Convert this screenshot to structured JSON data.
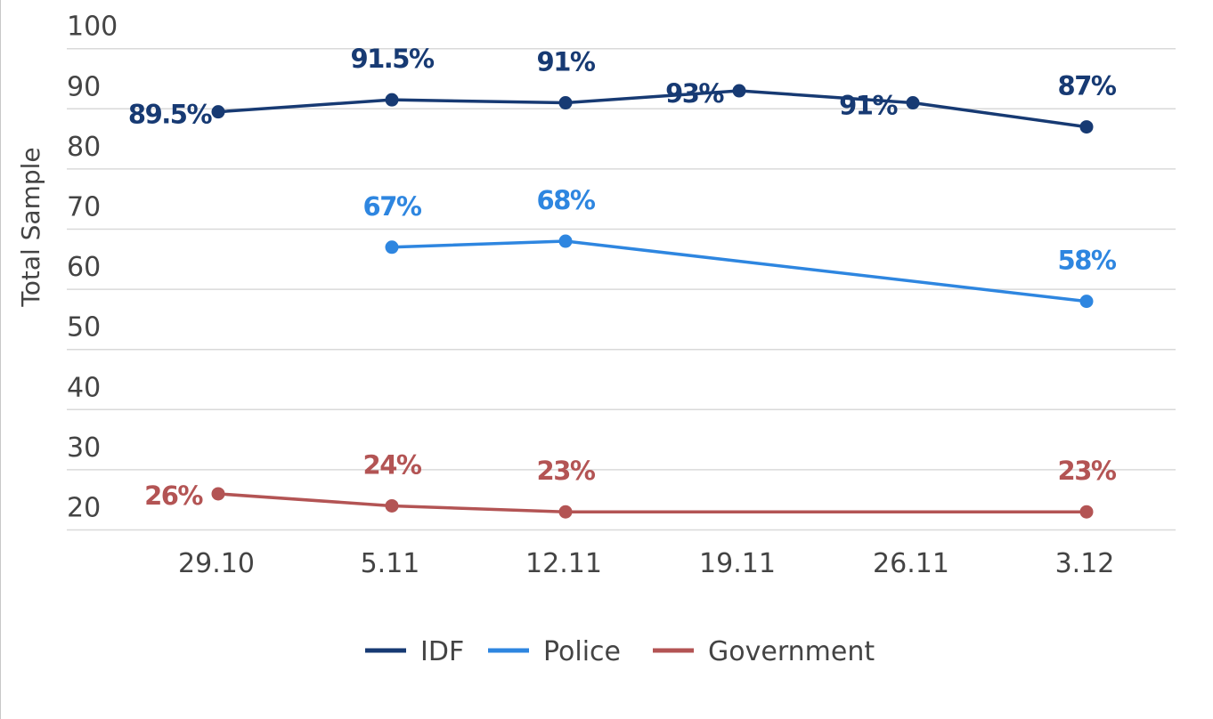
{
  "chart_data": {
    "type": "line",
    "categories": [
      "29.10",
      "5.11",
      "12.11",
      "19.11",
      "26.11",
      "3.12"
    ],
    "ylabel": "Total Sample",
    "xlabel": "",
    "ylim": [
      20,
      100
    ],
    "yticks": [
      20,
      30,
      40,
      50,
      60,
      70,
      80,
      90,
      100
    ],
    "grid": true,
    "legend_position": "bottom",
    "series": [
      {
        "name": "IDF",
        "color": "#173a73",
        "values": [
          89.5,
          91.5,
          91,
          93,
          91,
          87
        ],
        "labels": [
          "89.5%",
          "91.5%",
          "91%",
          "93%",
          "91%",
          "87%"
        ]
      },
      {
        "name": "Police",
        "color": "#2e86e0",
        "values": [
          null,
          67,
          68,
          null,
          null,
          58
        ],
        "labels": [
          null,
          "67%",
          "68%",
          null,
          null,
          "58%"
        ]
      },
      {
        "name": "Government",
        "color": "#b35454",
        "values": [
          26,
          24,
          23,
          null,
          null,
          23
        ],
        "labels": [
          "26%",
          "24%",
          "23%",
          null,
          null,
          "23%"
        ]
      }
    ]
  }
}
